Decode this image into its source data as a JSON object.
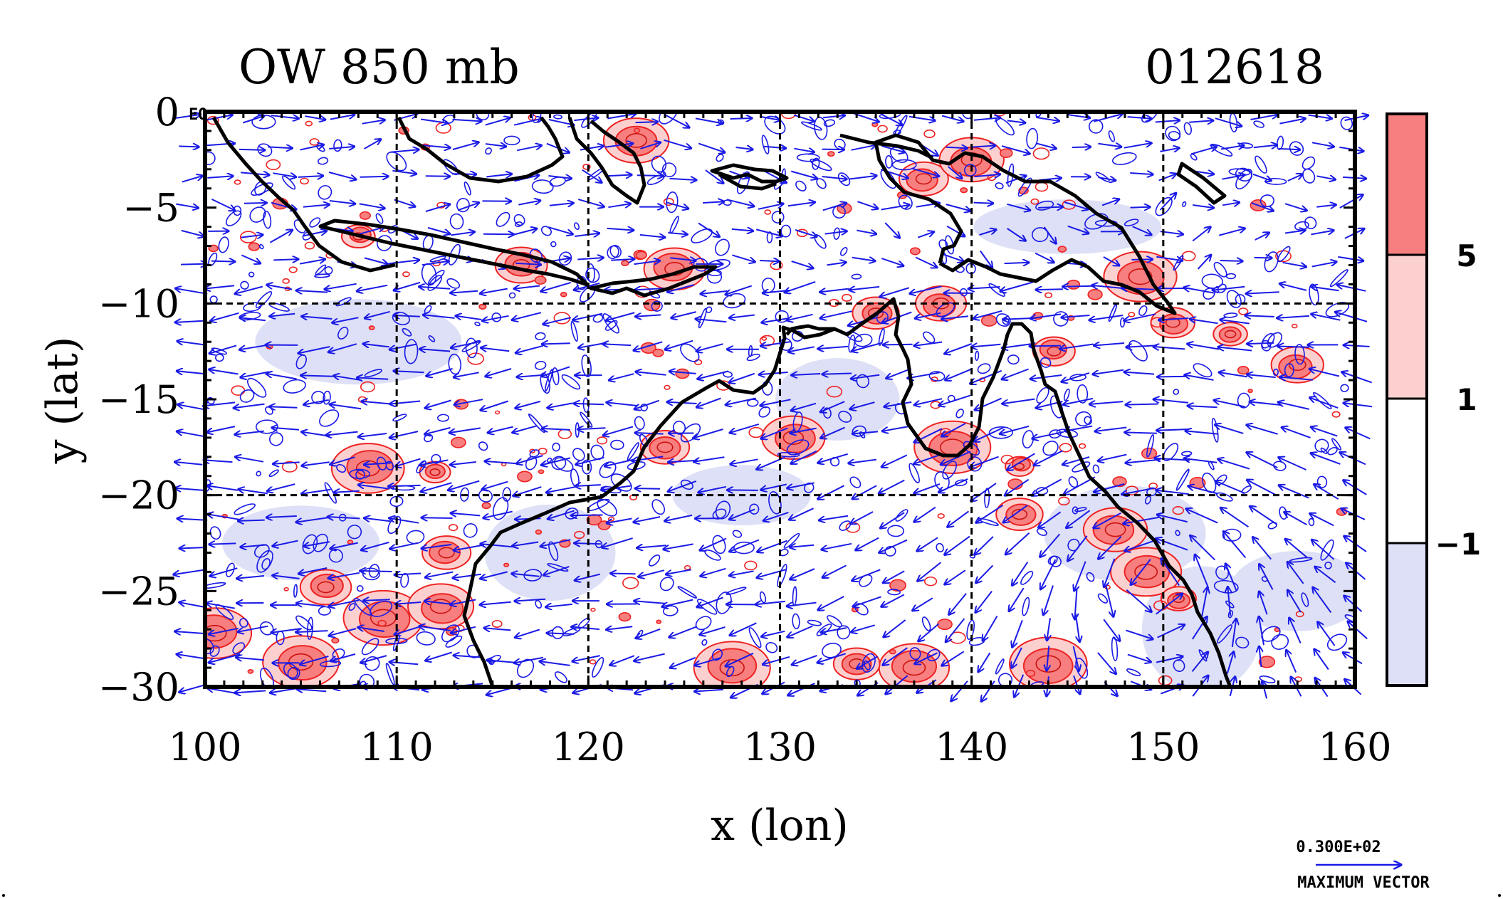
{
  "title": {
    "left": "OW 850 mb",
    "right": "012618"
  },
  "corner_label": "EQ",
  "axes": {
    "xlabel": "x (lon)",
    "ylabel": "y (lat)",
    "xlim": [
      100,
      160
    ],
    "ylim": [
      -30,
      0
    ],
    "x_ticks": [
      "100",
      "110",
      "120",
      "130",
      "140",
      "150",
      "160"
    ],
    "y_ticks": [
      "0",
      "−5",
      "−10",
      "−15",
      "−20",
      "−25",
      "−30"
    ],
    "x_tick_values": [
      100,
      110,
      120,
      130,
      140,
      150,
      160
    ],
    "y_tick_values": [
      0,
      -5,
      -10,
      -15,
      -20,
      -25,
      -30
    ],
    "grid_lon": [
      110,
      120,
      130,
      140,
      150
    ],
    "grid_lat": [
      -10,
      -20
    ]
  },
  "colorbar": {
    "labels": [
      "5",
      "1",
      "−1"
    ],
    "bands": [
      {
        "name": "above 5",
        "color": "#f77f7f"
      },
      {
        "name": "1 to 5",
        "color": "#fdd0d0"
      },
      {
        "name": "-1 to 1",
        "color": "#ffffff"
      },
      {
        "name": "below -1",
        "color": "#dde0f6"
      }
    ]
  },
  "reference_vector": {
    "value": "0.300E+02",
    "label": "MAXIMUM VECTOR"
  },
  "colors": {
    "positive": "#ee2222",
    "negative": "#1a1ae6",
    "coast": "#000000",
    "grid": "#000000"
  },
  "chart_data": {
    "type": "map",
    "title": "OW 850 mb",
    "date_label": "012618",
    "xlabel": "x (lon)",
    "ylabel": "y (lat)",
    "xlim": [
      100,
      160
    ],
    "ylim": [
      -30,
      0
    ],
    "contour_levels": [
      -1,
      1,
      5
    ],
    "positive_features": [
      {
        "lon": 108.5,
        "lat": -18.6
      },
      {
        "lon": 112.0,
        "lat": -18.8
      },
      {
        "lon": 106.3,
        "lat": -24.8
      },
      {
        "lon": 109.3,
        "lat": -26.4
      },
      {
        "lon": 100.5,
        "lat": -27.2
      },
      {
        "lon": 105.0,
        "lat": -28.7
      },
      {
        "lon": 112.6,
        "lat": -23.0
      },
      {
        "lon": 112.3,
        "lat": -25.8
      },
      {
        "lon": 124.0,
        "lat": -17.5
      },
      {
        "lon": 130.7,
        "lat": -17.0
      },
      {
        "lon": 139.0,
        "lat": -17.5
      },
      {
        "lon": 142.5,
        "lat": -18.5
      },
      {
        "lon": 149.1,
        "lat": -24.0
      },
      {
        "lon": 150.8,
        "lat": -25.4
      },
      {
        "lon": 147.5,
        "lat": -21.8
      },
      {
        "lon": 150.5,
        "lat": -11.0
      },
      {
        "lon": 153.5,
        "lat": -11.6
      },
      {
        "lon": 157.0,
        "lat": -13.2
      },
      {
        "lon": 148.8,
        "lat": -8.6
      },
      {
        "lon": 144.3,
        "lat": -12.5
      },
      {
        "lon": 137.5,
        "lat": -3.5
      },
      {
        "lon": 140.0,
        "lat": -2.5
      },
      {
        "lon": 124.5,
        "lat": -8.2
      },
      {
        "lon": 122.5,
        "lat": -1.5
      },
      {
        "lon": 135.0,
        "lat": -10.5
      },
      {
        "lon": 138.4,
        "lat": -10.0
      },
      {
        "lon": 142.5,
        "lat": -21.0
      },
      {
        "lon": 144.0,
        "lat": -28.8
      },
      {
        "lon": 137.0,
        "lat": -29.0
      },
      {
        "lon": 134.0,
        "lat": -28.8
      },
      {
        "lon": 127.5,
        "lat": -29.0
      },
      {
        "lon": 116.5,
        "lat": -8.0
      },
      {
        "lon": 108.0,
        "lat": -6.5
      }
    ],
    "negative_regions": [
      {
        "lon": 108.0,
        "lat": -12.0
      },
      {
        "lon": 105.0,
        "lat": -22.5
      },
      {
        "lon": 148.0,
        "lat": -22.0
      },
      {
        "lon": 152.0,
        "lat": -27.0
      },
      {
        "lon": 157.0,
        "lat": -25.0
      },
      {
        "lon": 133.0,
        "lat": -15.0
      },
      {
        "lon": 145.0,
        "lat": -6.0
      },
      {
        "lon": 118.0,
        "lat": -23.0
      },
      {
        "lon": 128.0,
        "lat": -20.0
      }
    ],
    "wind_field": {
      "cyclone_center": {
        "lon": 149.5,
        "lat": -24.5
      },
      "trade_direction": "easterly",
      "reference_speed": "0.300E+02"
    }
  }
}
